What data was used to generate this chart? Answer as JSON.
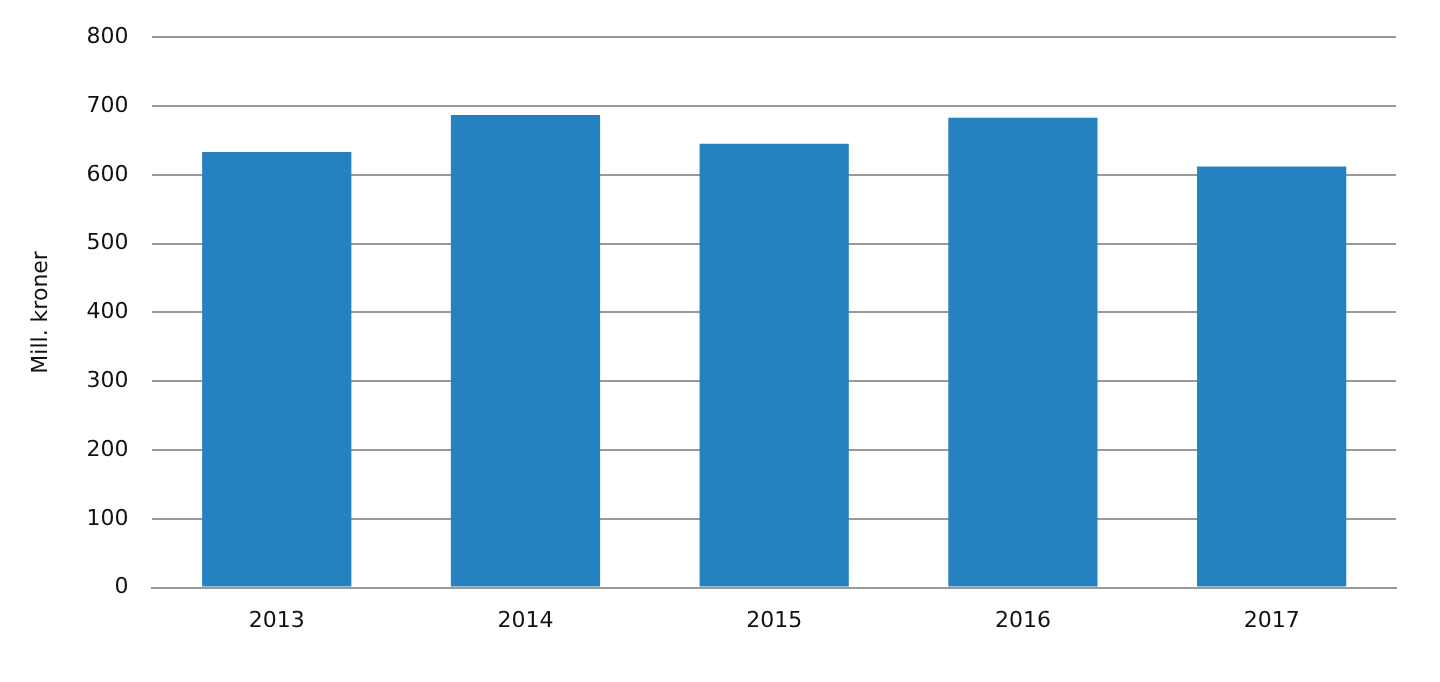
{
  "chart_data": {
    "type": "bar",
    "ylabel": "Mill. kroner",
    "categories": [
      "2013",
      "2014",
      "2015",
      "2016",
      "2017"
    ],
    "values": [
      633,
      687,
      645,
      683,
      612
    ],
    "color": "#2681c1",
    "ylim": [
      0,
      800
    ],
    "yticks": [
      0,
      100,
      200,
      300,
      400,
      500,
      600,
      700,
      800
    ],
    "grid": "y"
  }
}
